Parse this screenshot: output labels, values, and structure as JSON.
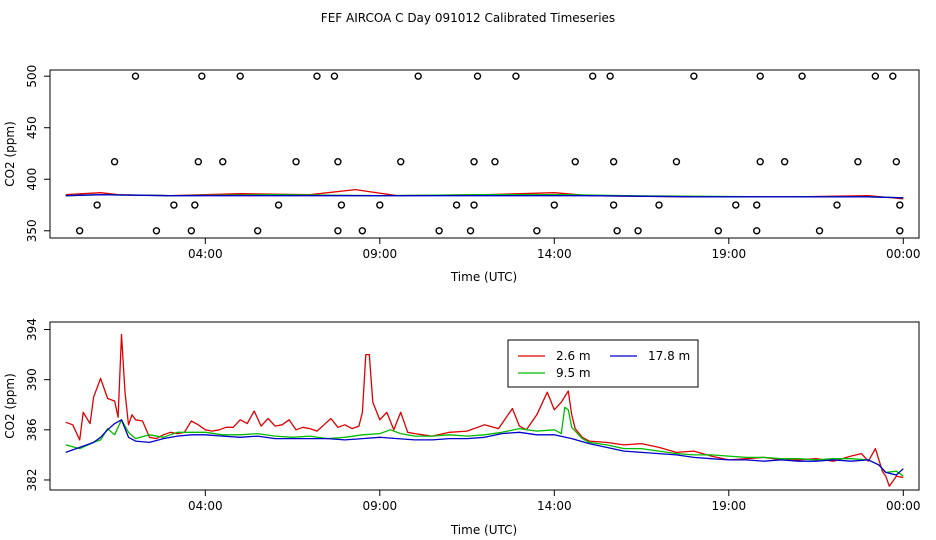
{
  "title": "FEF AIRCOA C  Day 091012  Calibrated Timeseries",
  "colors": {
    "red": "#e00000",
    "green": "#00bb00",
    "blue": "#0000cc"
  },
  "chart_data": [
    {
      "type": "scatter",
      "xlabel": "Time (UTC)",
      "ylabel": "CO2 (ppm)",
      "xlim": [
        -0.45,
        24.45
      ],
      "ylim": [
        343,
        506
      ],
      "xticks": [
        {
          "value": 4,
          "label": "04:00"
        },
        {
          "value": 9,
          "label": "09:00"
        },
        {
          "value": 14,
          "label": "14:00"
        },
        {
          "value": 19,
          "label": "19:00"
        },
        {
          "value": 24,
          "label": "00:00"
        }
      ],
      "yticks": [
        350,
        400,
        450,
        500
      ],
      "reference_points": [
        {
          "x": 0.4,
          "y": 350
        },
        {
          "x": 0.9,
          "y": 375
        },
        {
          "x": 1.4,
          "y": 417
        },
        {
          "x": 2.0,
          "y": 500
        },
        {
          "x": 2.6,
          "y": 350
        },
        {
          "x": 3.1,
          "y": 375
        },
        {
          "x": 3.6,
          "y": 350
        },
        {
          "x": 3.7,
          "y": 375
        },
        {
          "x": 3.8,
          "y": 417
        },
        {
          "x": 3.9,
          "y": 500
        },
        {
          "x": 4.5,
          "y": 417
        },
        {
          "x": 5.0,
          "y": 500
        },
        {
          "x": 5.5,
          "y": 350
        },
        {
          "x": 6.1,
          "y": 375
        },
        {
          "x": 6.6,
          "y": 417
        },
        {
          "x": 7.2,
          "y": 500
        },
        {
          "x": 7.7,
          "y": 500
        },
        {
          "x": 7.8,
          "y": 417
        },
        {
          "x": 7.9,
          "y": 375
        },
        {
          "x": 7.8,
          "y": 350
        },
        {
          "x": 8.5,
          "y": 350
        },
        {
          "x": 9.0,
          "y": 375
        },
        {
          "x": 9.6,
          "y": 417
        },
        {
          "x": 10.1,
          "y": 500
        },
        {
          "x": 10.7,
          "y": 350
        },
        {
          "x": 11.2,
          "y": 375
        },
        {
          "x": 11.7,
          "y": 417
        },
        {
          "x": 11.8,
          "y": 500
        },
        {
          "x": 11.7,
          "y": 375
        },
        {
          "x": 11.6,
          "y": 350
        },
        {
          "x": 12.3,
          "y": 417
        },
        {
          "x": 12.9,
          "y": 500
        },
        {
          "x": 13.5,
          "y": 350
        },
        {
          "x": 14.0,
          "y": 375
        },
        {
          "x": 14.6,
          "y": 417
        },
        {
          "x": 15.1,
          "y": 500
        },
        {
          "x": 15.6,
          "y": 500
        },
        {
          "x": 15.7,
          "y": 417
        },
        {
          "x": 15.7,
          "y": 375
        },
        {
          "x": 15.8,
          "y": 350
        },
        {
          "x": 16.4,
          "y": 350
        },
        {
          "x": 17.0,
          "y": 375
        },
        {
          "x": 17.5,
          "y": 417
        },
        {
          "x": 18.0,
          "y": 500
        },
        {
          "x": 18.7,
          "y": 350
        },
        {
          "x": 19.2,
          "y": 375
        },
        {
          "x": 19.8,
          "y": 350
        },
        {
          "x": 19.8,
          "y": 375
        },
        {
          "x": 19.9,
          "y": 417
        },
        {
          "x": 19.9,
          "y": 500
        },
        {
          "x": 20.6,
          "y": 417
        },
        {
          "x": 21.1,
          "y": 500
        },
        {
          "x": 21.6,
          "y": 350
        },
        {
          "x": 22.1,
          "y": 375
        },
        {
          "x": 22.7,
          "y": 417
        },
        {
          "x": 23.2,
          "y": 500
        },
        {
          "x": 23.7,
          "y": 500
        },
        {
          "x": 23.8,
          "y": 417
        },
        {
          "x": 23.9,
          "y": 375
        },
        {
          "x": 23.9,
          "y": 350
        }
      ],
      "series": [
        {
          "color": "red",
          "x": [
            0,
            1,
            1.5,
            3,
            5,
            7,
            8.3,
            9.5,
            12,
            14,
            15,
            18,
            21,
            23,
            24
          ],
          "y": [
            385,
            387,
            385,
            384,
            386,
            385,
            390,
            384,
            385,
            387,
            384,
            383,
            383,
            384,
            381
          ]
        },
        {
          "color": "green",
          "x": [
            0,
            1,
            3,
            6,
            9,
            12,
            14.3,
            16,
            20,
            23,
            24
          ],
          "y": [
            384,
            385,
            384,
            385,
            384,
            385,
            385,
            384,
            383,
            383,
            382
          ]
        },
        {
          "color": "blue",
          "x": [
            0,
            1,
            3,
            6,
            9,
            12,
            15,
            18,
            21,
            23,
            24
          ],
          "y": [
            384,
            385,
            384,
            384,
            384,
            384,
            384,
            383,
            383,
            383,
            382
          ]
        }
      ]
    },
    {
      "type": "line",
      "xlabel": "Time (UTC)",
      "ylabel": "CO2 (ppm)",
      "xlim": [
        -0.45,
        24.45
      ],
      "ylim": [
        381.2,
        394.6
      ],
      "xticks": [
        {
          "value": 4,
          "label": "04:00"
        },
        {
          "value": 9,
          "label": "09:00"
        },
        {
          "value": 14,
          "label": "14:00"
        },
        {
          "value": 19,
          "label": "19:00"
        },
        {
          "value": 24,
          "label": "00:00"
        }
      ],
      "yticks": [
        382,
        386,
        390,
        394
      ],
      "legend": "top-center",
      "series": [
        {
          "name": "2.6 m",
          "color": "red",
          "x": [
            0.0,
            0.2,
            0.4,
            0.5,
            0.7,
            0.8,
            1.0,
            1.2,
            1.4,
            1.5,
            1.6,
            1.7,
            1.8,
            1.9,
            2.0,
            2.2,
            2.4,
            2.6,
            2.8,
            3.0,
            3.2,
            3.4,
            3.6,
            3.8,
            4.0,
            4.2,
            4.4,
            4.6,
            4.8,
            5.0,
            5.2,
            5.4,
            5.6,
            5.8,
            6.0,
            6.2,
            6.4,
            6.6,
            6.8,
            7.0,
            7.2,
            7.4,
            7.6,
            7.8,
            8.0,
            8.2,
            8.4,
            8.5,
            8.6,
            8.7,
            8.8,
            9.0,
            9.2,
            9.4,
            9.6,
            9.8,
            10.0,
            10.5,
            11.0,
            11.5,
            12.0,
            12.4,
            12.8,
            13.0,
            13.2,
            13.5,
            13.8,
            14.0,
            14.2,
            14.4,
            14.5,
            14.6,
            14.8,
            15.0,
            15.5,
            16.0,
            16.5,
            17.0,
            17.5,
            18.0,
            18.5,
            19.0,
            19.5,
            20.0,
            20.5,
            21.0,
            21.5,
            22.0,
            22.5,
            22.8,
            23.0,
            23.2,
            23.4,
            23.5,
            23.6,
            23.8,
            24.0
          ],
          "y": [
            386.6,
            386.4,
            385.2,
            387.4,
            386.5,
            388.6,
            390.1,
            388.5,
            388.3,
            387.0,
            393.6,
            389.0,
            386.4,
            387.2,
            386.8,
            386.7,
            385.4,
            385.3,
            385.6,
            385.8,
            385.7,
            385.8,
            386.7,
            386.4,
            386.0,
            385.9,
            386.0,
            386.2,
            386.2,
            386.8,
            386.5,
            387.5,
            386.3,
            386.9,
            386.3,
            386.4,
            386.8,
            386.0,
            386.2,
            386.1,
            385.9,
            386.4,
            386.9,
            386.2,
            386.4,
            386.1,
            386.3,
            387.4,
            392.0,
            392.0,
            388.2,
            386.8,
            387.4,
            386.0,
            387.4,
            385.8,
            385.7,
            385.5,
            385.8,
            385.9,
            386.4,
            386.1,
            387.7,
            386.3,
            386.0,
            387.2,
            389.0,
            387.6,
            388.2,
            389.1,
            387.2,
            386.1,
            385.4,
            385.1,
            385.0,
            384.8,
            384.9,
            384.6,
            384.2,
            384.3,
            383.9,
            383.6,
            383.7,
            383.8,
            383.6,
            383.6,
            383.7,
            383.5,
            383.9,
            384.1,
            383.5,
            384.5,
            382.7,
            382.3,
            381.5,
            382.3,
            382.2
          ]
        },
        {
          "name": "9.5 m",
          "color": "green",
          "x": [
            0.0,
            0.4,
            0.8,
            1.0,
            1.2,
            1.4,
            1.6,
            1.8,
            2.0,
            2.4,
            2.8,
            3.2,
            3.6,
            4.0,
            4.5,
            5.0,
            5.5,
            6.0,
            6.5,
            7.0,
            7.5,
            8.0,
            8.5,
            9.0,
            9.3,
            9.6,
            10.0,
            10.5,
            11.0,
            11.5,
            12.0,
            12.5,
            13.0,
            13.5,
            14.0,
            14.2,
            14.3,
            14.4,
            14.5,
            14.6,
            14.8,
            15.0,
            15.5,
            16.0,
            16.5,
            17.0,
            17.5,
            18.0,
            18.5,
            19.0,
            19.5,
            20.0,
            20.5,
            21.0,
            21.5,
            22.0,
            22.5,
            23.0,
            23.3,
            23.5,
            23.8,
            24.0
          ],
          "y": [
            384.8,
            384.5,
            385.0,
            385.2,
            386.1,
            385.6,
            386.8,
            385.8,
            385.3,
            385.6,
            385.4,
            385.8,
            385.8,
            385.8,
            385.6,
            385.6,
            385.7,
            385.5,
            385.4,
            385.5,
            385.3,
            385.4,
            385.6,
            385.7,
            386.0,
            385.7,
            385.5,
            385.5,
            385.6,
            385.5,
            385.6,
            385.8,
            386.1,
            385.9,
            386.0,
            385.7,
            387.8,
            387.6,
            386.2,
            385.9,
            385.3,
            385.0,
            384.8,
            384.5,
            384.5,
            384.3,
            384.1,
            384.0,
            384.0,
            383.9,
            383.8,
            383.8,
            383.7,
            383.7,
            383.6,
            383.7,
            383.7,
            383.6,
            383.2,
            382.6,
            382.7,
            382.3
          ]
        },
        {
          "name": "17.8 m",
          "color": "blue",
          "x": [
            0.0,
            0.4,
            0.8,
            1.0,
            1.2,
            1.4,
            1.6,
            1.8,
            2.0,
            2.4,
            2.8,
            3.2,
            3.6,
            4.0,
            4.5,
            5.0,
            5.5,
            6.0,
            6.5,
            7.0,
            7.5,
            8.0,
            8.5,
            9.0,
            9.5,
            10.0,
            10.5,
            11.0,
            11.5,
            12.0,
            12.5,
            13.0,
            13.5,
            14.0,
            14.5,
            15.0,
            15.5,
            16.0,
            16.5,
            17.0,
            17.5,
            18.0,
            18.5,
            19.0,
            19.5,
            20.0,
            20.5,
            21.0,
            21.5,
            22.0,
            22.5,
            23.0,
            23.3,
            23.5,
            23.8,
            24.0
          ],
          "y": [
            384.2,
            384.6,
            385.0,
            385.4,
            386.0,
            386.5,
            386.8,
            385.4,
            385.1,
            385.0,
            385.3,
            385.5,
            385.6,
            385.6,
            385.5,
            385.4,
            385.5,
            385.3,
            385.3,
            385.3,
            385.3,
            385.2,
            385.3,
            385.4,
            385.3,
            385.2,
            385.2,
            385.3,
            385.3,
            385.4,
            385.7,
            385.8,
            385.6,
            385.6,
            385.3,
            384.9,
            384.6,
            384.3,
            384.2,
            384.1,
            384.0,
            383.8,
            383.7,
            383.6,
            383.6,
            383.5,
            383.6,
            383.5,
            383.5,
            383.6,
            383.5,
            383.6,
            383.2,
            382.6,
            382.4,
            382.9
          ]
        }
      ]
    }
  ]
}
